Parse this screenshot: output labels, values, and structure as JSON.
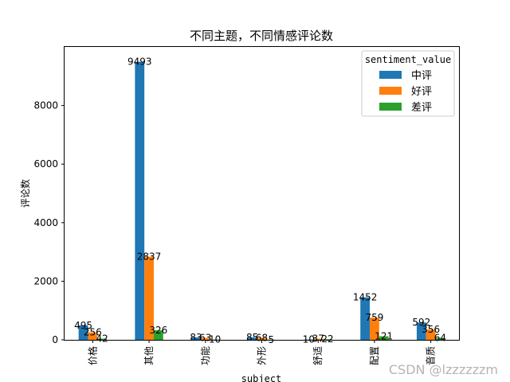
{
  "chart_data": {
    "type": "bar",
    "title": "不同主题，不同情感评论数",
    "xlabel": "subject",
    "ylabel": "评论数",
    "categories": [
      "价格",
      "其他",
      "功能",
      "外形",
      "舒适",
      "配置",
      "音质"
    ],
    "ylim": [
      0,
      10000
    ],
    "yticks": [
      "0",
      "2000",
      "4000",
      "6000",
      "8000"
    ],
    "grid": false,
    "legend_position": "top-right",
    "legend_title": "sentiment_value",
    "series": [
      {
        "name": "中评",
        "color": "#1f77b4",
        "values": [
          495,
          9493,
          83,
          85,
          10,
          1452,
          592
        ]
      },
      {
        "name": "好评",
        "color": "#ff7f0e",
        "values": [
          256,
          2837,
          63,
          68,
          37,
          759,
          356
        ]
      },
      {
        "name": "差评",
        "color": "#2ca02c",
        "values": [
          42,
          326,
          10,
          5,
          22,
          121,
          64
        ]
      }
    ]
  },
  "watermark": "CSDN @lzzzzzzm"
}
